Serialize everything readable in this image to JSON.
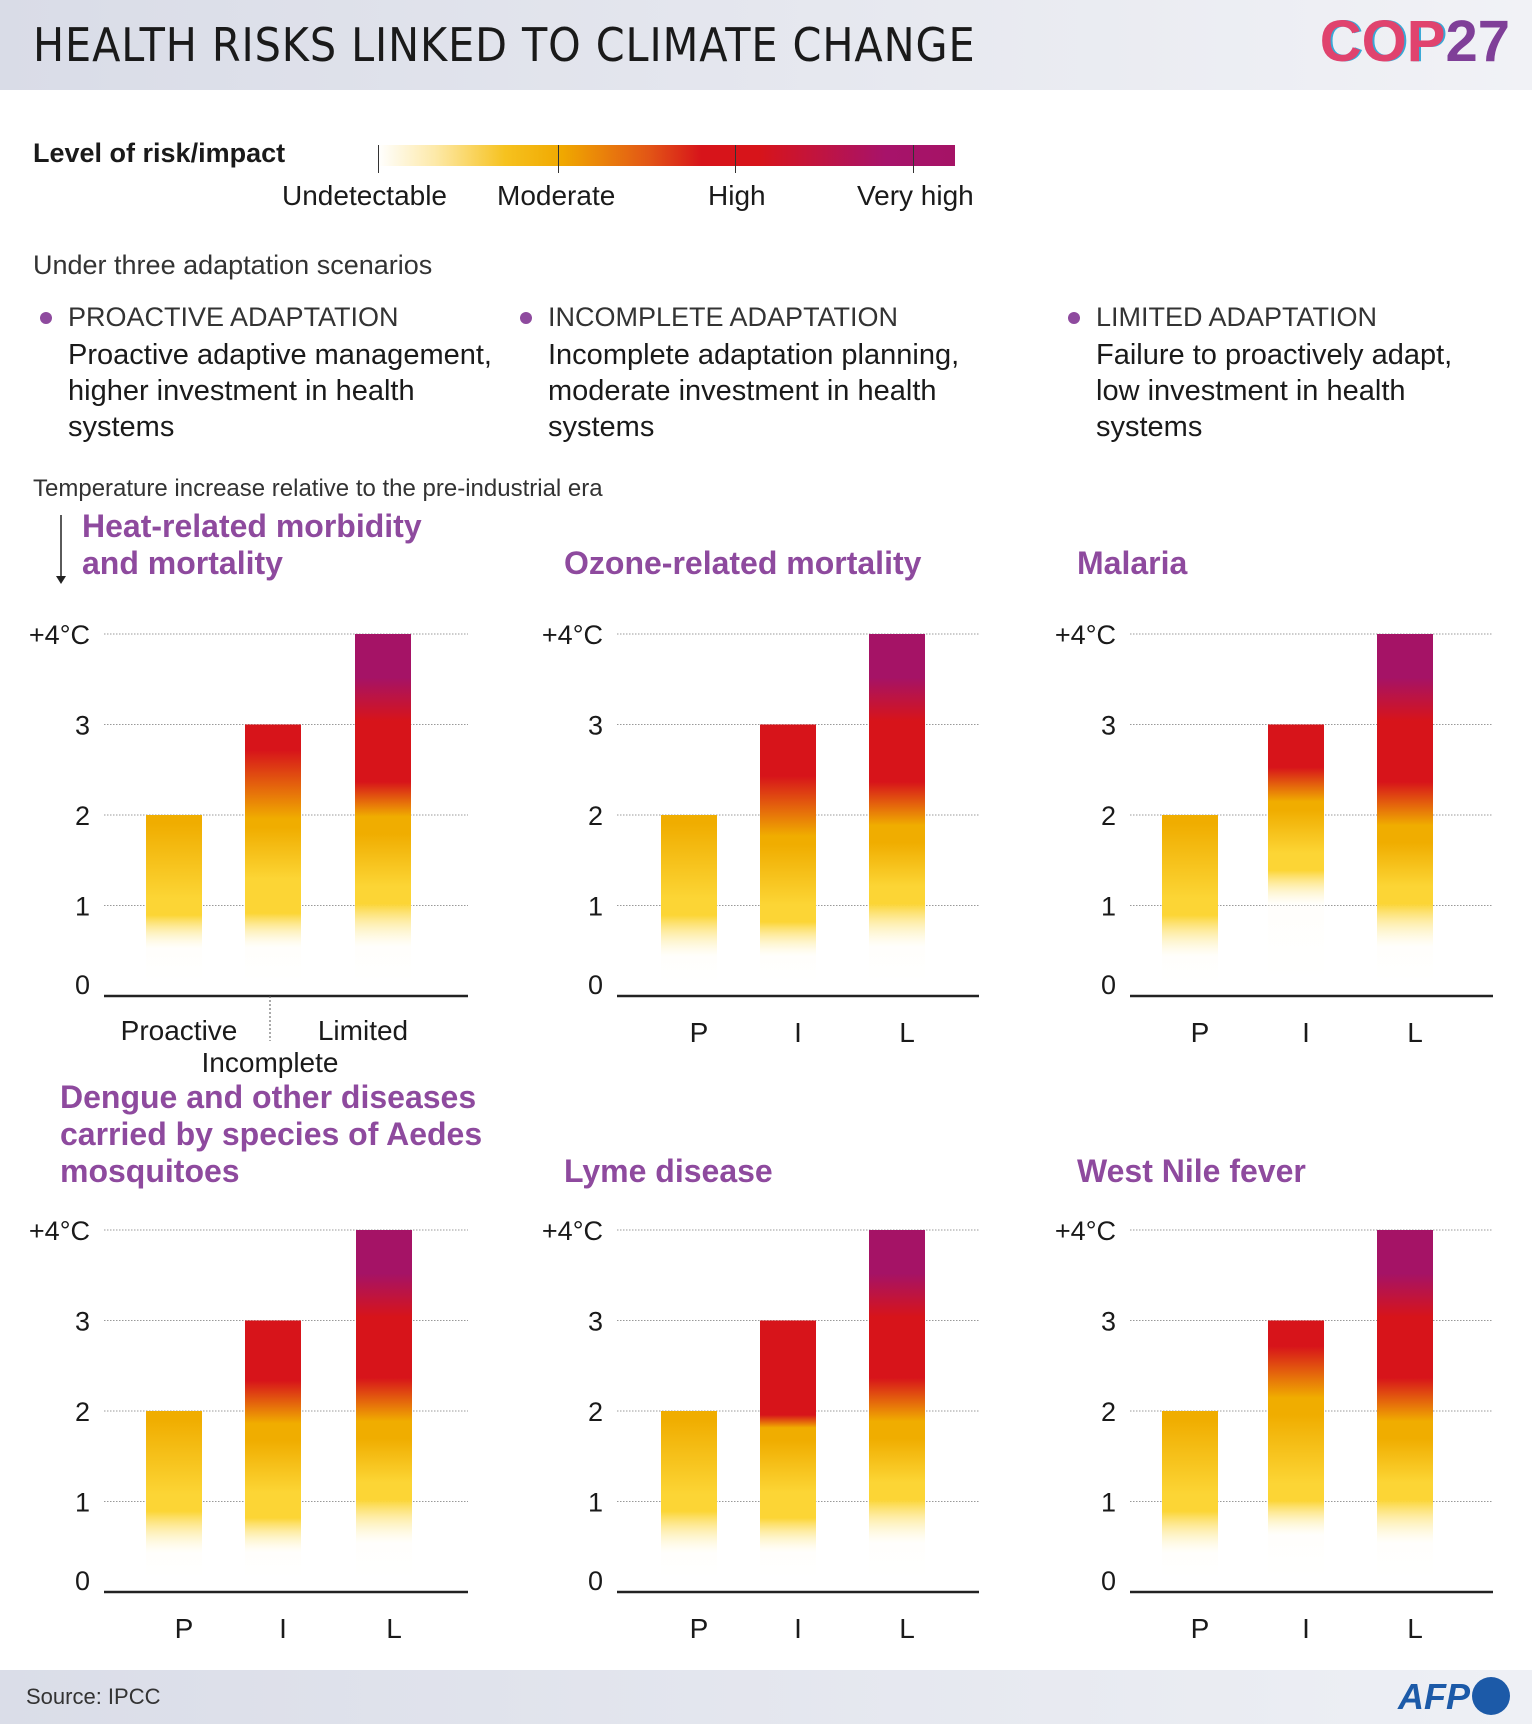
{
  "header": {
    "title": "HEALTH RISKS LINKED TO CLIMATE CHANGE",
    "logo_text": "COP27",
    "logo_part1": "COP",
    "logo_part2": "27"
  },
  "legend": {
    "title": "Level of risk/impact",
    "levels": [
      "Undetectable",
      "Moderate",
      "High",
      "Very high"
    ],
    "colors": {
      "undetectable": "#fffdf4",
      "moderate_low": "#fcd535",
      "moderate": "#f0ad00",
      "high": "#d7141a",
      "very_high": "#a51366"
    }
  },
  "intro": "Under three adaptation scenarios",
  "scenarios": [
    {
      "heading": "PROACTIVE ADAPTATION",
      "description": "Proactive adaptive management, higher investment in health systems"
    },
    {
      "heading": "INCOMPLETE ADAPTATION",
      "description": "Incomplete adaptation planning, moderate investment in health systems"
    },
    {
      "heading": "LIMITED ADAPTATION",
      "description": "Failure to proactively adapt, low investment in health systems"
    }
  ],
  "temperature_note": "Temperature increase relative to the pre-industrial era",
  "accent_color": "#8e4a9e",
  "chart_data": [
    {
      "type": "bar",
      "title": "Heat-related morbidity and mortality",
      "categories": [
        "Proactive",
        "Incomplete",
        "Limited"
      ],
      "values": [
        2,
        3,
        4
      ],
      "ylim": [
        0,
        4
      ],
      "yticks": [
        "0",
        "1",
        "2",
        "3",
        "+4°C"
      ],
      "risk_bands": [
        [
          [
            "undetectable",
            0,
            0.4
          ],
          [
            "moderate_low",
            0.8,
            1.0
          ],
          [
            "moderate",
            1.9,
            2
          ]
        ],
        [
          [
            "undetectable",
            0,
            0.4
          ],
          [
            "moderate_low",
            0.8,
            1.2
          ],
          [
            "moderate",
            1.8,
            1.9
          ],
          [
            "high",
            2.7,
            3
          ]
        ],
        [
          [
            "undetectable",
            0,
            0.4
          ],
          [
            "moderate_low",
            0.9,
            1.1
          ],
          [
            "moderate",
            1.7,
            1.9
          ],
          [
            "high",
            2.3,
            3.0
          ],
          [
            "very_high",
            3.5,
            4
          ]
        ]
      ]
    },
    {
      "type": "bar",
      "title": "Ozone-related mortality",
      "categories": [
        "P",
        "I",
        "L"
      ],
      "values": [
        2,
        3,
        4
      ],
      "ylim": [
        0,
        4
      ],
      "yticks": [
        "0",
        "1",
        "2",
        "3",
        "+4°C"
      ],
      "risk_bands": [
        [
          [
            "undetectable",
            0,
            0.3
          ],
          [
            "moderate_low",
            0.8,
            1.0
          ],
          [
            "moderate",
            1.9,
            2
          ]
        ],
        [
          [
            "undetectable",
            0,
            0.3
          ],
          [
            "moderate_low",
            0.7,
            0.9
          ],
          [
            "moderate",
            1.6,
            1.7
          ],
          [
            "high",
            2.4,
            3
          ]
        ],
        [
          [
            "undetectable",
            0,
            0.4
          ],
          [
            "moderate_low",
            0.9,
            1.1
          ],
          [
            "moderate",
            1.6,
            1.8
          ],
          [
            "high",
            2.3,
            3.0
          ],
          [
            "very_high",
            3.5,
            4
          ]
        ]
      ]
    },
    {
      "type": "bar",
      "title": "Malaria",
      "categories": [
        "P",
        "I",
        "L"
      ],
      "values": [
        2,
        3,
        4
      ],
      "ylim": [
        0,
        4
      ],
      "yticks": [
        "0",
        "1",
        "2",
        "3",
        "+4°C"
      ],
      "risk_bands": [
        [
          [
            "undetectable",
            0,
            0.3
          ],
          [
            "moderate_low",
            0.8,
            1.0
          ],
          [
            "moderate",
            1.9,
            2
          ]
        ],
        [
          [
            "undetectable",
            0,
            0.9
          ],
          [
            "moderate_low",
            1.3,
            1.5
          ],
          [
            "moderate",
            2.0,
            2.1
          ],
          [
            "high",
            2.5,
            3
          ]
        ],
        [
          [
            "undetectable",
            0,
            0.4
          ],
          [
            "moderate_low",
            0.9,
            1.1
          ],
          [
            "moderate",
            1.6,
            1.8
          ],
          [
            "high",
            2.3,
            3.0
          ],
          [
            "very_high",
            3.5,
            4
          ]
        ]
      ]
    },
    {
      "type": "bar",
      "title": "Dengue and other diseases carried by species of Aedes mosquitoes",
      "categories": [
        "P",
        "I",
        "L"
      ],
      "values": [
        2,
        3,
        4
      ],
      "ylim": [
        0,
        4
      ],
      "yticks": [
        "0",
        "1",
        "2",
        "3",
        "+4°C"
      ],
      "risk_bands": [
        [
          [
            "undetectable",
            0,
            0.3
          ],
          [
            "moderate_low",
            0.8,
            1.0
          ],
          [
            "moderate",
            1.9,
            2
          ]
        ],
        [
          [
            "undetectable",
            0,
            0.3
          ],
          [
            "moderate_low",
            0.7,
            1.0
          ],
          [
            "moderate",
            1.6,
            1.8
          ],
          [
            "high",
            2.3,
            3
          ]
        ],
        [
          [
            "undetectable",
            0,
            0.4
          ],
          [
            "moderate_low",
            0.9,
            1.1
          ],
          [
            "moderate",
            1.6,
            1.8
          ],
          [
            "high",
            2.3,
            3.0
          ],
          [
            "very_high",
            3.5,
            4
          ]
        ]
      ]
    },
    {
      "type": "bar",
      "title": "Lyme disease",
      "categories": [
        "P",
        "I",
        "L"
      ],
      "values": [
        2,
        3,
        4
      ],
      "ylim": [
        0,
        4
      ],
      "yticks": [
        "0",
        "1",
        "2",
        "3",
        "+4°C"
      ],
      "risk_bands": [
        [
          [
            "undetectable",
            0,
            0.3
          ],
          [
            "moderate_low",
            0.8,
            1.0
          ],
          [
            "moderate",
            1.9,
            2
          ]
        ],
        [
          [
            "undetectable",
            0,
            0.3
          ],
          [
            "moderate_low",
            0.7,
            1.0
          ],
          [
            "moderate",
            1.6,
            1.75
          ],
          [
            "high",
            1.9,
            3
          ]
        ],
        [
          [
            "undetectable",
            0,
            0.4
          ],
          [
            "moderate_low",
            0.9,
            1.1
          ],
          [
            "moderate",
            1.6,
            1.8
          ],
          [
            "high",
            2.3,
            3.0
          ],
          [
            "very_high",
            3.5,
            4
          ]
        ]
      ]
    },
    {
      "type": "bar",
      "title": "West Nile fever",
      "categories": [
        "P",
        "I",
        "L"
      ],
      "values": [
        2,
        3,
        4
      ],
      "ylim": [
        0,
        4
      ],
      "yticks": [
        "0",
        "1",
        "2",
        "3",
        "+4°C"
      ],
      "risk_bands": [
        [
          [
            "undetectable",
            0,
            0.3
          ],
          [
            "moderate_low",
            0.8,
            1.0
          ],
          [
            "moderate",
            1.9,
            2
          ]
        ],
        [
          [
            "undetectable",
            0,
            0.5
          ],
          [
            "moderate_low",
            0.9,
            1.1
          ],
          [
            "moderate",
            1.9,
            2.1
          ],
          [
            "high",
            2.7,
            3
          ]
        ],
        [
          [
            "undetectable",
            0,
            0.4
          ],
          [
            "moderate_low",
            0.9,
            1.1
          ],
          [
            "moderate",
            1.6,
            1.8
          ],
          [
            "high",
            2.3,
            3.0
          ],
          [
            "very_high",
            3.5,
            4
          ]
        ]
      ]
    }
  ],
  "first_chart_axis_labels": [
    "Proactive",
    "Incomplete",
    "Limited"
  ],
  "footer": {
    "source": "Source: IPCC",
    "agency_logo": "AFP"
  }
}
